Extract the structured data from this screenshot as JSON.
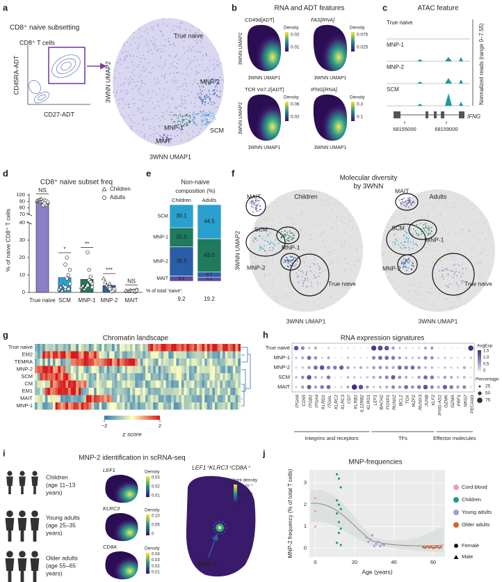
{
  "palette": [
    "#8a80c8",
    "#2b5ea7",
    "#1f7a5e",
    "#2aa0d0",
    "#5a4ea0"
  ],
  "a": {
    "label": "a",
    "title": "CD8⁺ naive subsetting",
    "gate_label": "CD8⁺ T cells",
    "x_label": "CD27-ADT",
    "y_label": "CD45RA-ADT",
    "umap_x": "3WNN UMAP1",
    "umap_y": "3WNN UMAP2",
    "clusters": [
      "True naive",
      "MNP-2",
      "MNP-1",
      "SCM",
      "MAIT"
    ]
  },
  "b": {
    "label": "b",
    "title": "RNA and ADT features",
    "umap_x": "3WNN UMAP1",
    "umap_y": "3WNN UMAP2",
    "legend_title": "Density",
    "features": [
      {
        "name": "CD49d[ADT]",
        "ticks": [
          "0.02",
          "0.01"
        ]
      },
      {
        "name": "FAS[RNA]",
        "ticks": [
          "0.075",
          "0.025"
        ]
      },
      {
        "name": "TCR Vα7.2[ADT]",
        "ticks": [
          "0.06",
          "0.02"
        ]
      },
      {
        "name": "IFNG[RNA]",
        "ticks": [
          "0.3",
          "0.1"
        ]
      }
    ]
  },
  "c": {
    "label": "c",
    "title": "ATAC feature",
    "tracks": [
      "True naive",
      "MNP-1",
      "MNP-2",
      "SCM"
    ],
    "y_label": "Normalized reads (range 0–7.55)",
    "gene": "IFNG",
    "x_ticks": [
      "68155000",
      "68159000"
    ]
  },
  "d": {
    "label": "d",
    "title": "CD8⁺ naive subset freq",
    "y_label": "% of naive CD8⁺ T cells",
    "legend": [
      "Children",
      "Adults"
    ],
    "categories": [
      "True naive",
      "SCM",
      "MNP-1",
      "MNP-2",
      "MAIT"
    ],
    "values": [
      88,
      8.5,
      7.5,
      4,
      0.8
    ],
    "significance": [
      "NS",
      "*",
      "**",
      "***",
      "NS"
    ],
    "points_children": [
      [
        91,
        92,
        93,
        94,
        88
      ],
      [
        2,
        3,
        1,
        4,
        2
      ],
      [
        3,
        4,
        2,
        3,
        5
      ],
      [
        8,
        6,
        4,
        3,
        5
      ],
      [
        1,
        0.5,
        0.8,
        1.2,
        0.6
      ]
    ],
    "points_adults": [
      [
        90,
        92,
        85,
        88,
        84,
        87,
        91,
        89
      ],
      [
        16,
        20,
        10,
        5,
        3,
        8,
        2,
        13
      ],
      [
        23,
        13,
        9,
        5,
        4,
        7,
        6,
        3
      ],
      [
        3,
        2,
        1,
        1,
        2,
        0.5,
        1,
        2
      ],
      [
        0.8,
        1,
        0.4,
        1.5,
        0.6,
        0.9,
        0.7,
        1.1
      ]
    ],
    "yticks": [
      0,
      10,
      20,
      30,
      40,
      70,
      80,
      90,
      100
    ]
  },
  "e": {
    "label": "e",
    "title_lines": [
      "Non-naive",
      "composition (%)"
    ],
    "columns": [
      "Children",
      "Adults"
    ],
    "segments": [
      {
        "name": "SCM",
        "values": [
          30.1,
          44.5
        ],
        "value_labels": [
          "30.1",
          "44.5"
        ]
      },
      {
        "name": "MNP-1",
        "values": [
          25,
          43.5
        ],
        "value_labels": [
          "25.0",
          "43.5"
        ]
      },
      {
        "name": "MNP-2",
        "values": [
          38,
          6.7
        ],
        "value_labels": [
          "38.0",
          "6.7"
        ]
      },
      {
        "name": "MAIT",
        "values": [
          6.9,
          5.3
        ],
        "value_labels": [
          "6.9",
          "5.3"
        ]
      }
    ],
    "footer_label": "% of total 'naive':",
    "totals": [
      9.2,
      19.2
    ]
  },
  "f": {
    "label": "f",
    "title_lines": [
      "Molecular diversity",
      "by 3WNN"
    ],
    "groups": [
      "Children",
      "Adults"
    ],
    "clusters": [
      "MAIT",
      "SCM",
      "MNP-1",
      "MNP-2",
      "True naive"
    ],
    "umap_x": "3WNN UMAP1",
    "umap_y": "3WNN UMAP2"
  },
  "g": {
    "label": "g",
    "title": "Chromatin landscape",
    "rows": [
      "True naive",
      "EM2",
      "TEMRA",
      "MNP-2",
      "SCM",
      "CM",
      "EM1",
      "MAIT",
      "MNP-1"
    ],
    "colorbar_ticks": [
      {
        "value": -2,
        "label": "−2"
      },
      2
    ],
    "colorbar_label": "z score"
  },
  "h": {
    "label": "h",
    "title": "RNA expression signatures",
    "rows": [
      "True naive",
      "MNP-1",
      "MNP-2",
      "SCM",
      "MAIT"
    ],
    "genes": [
      "ITGA6",
      "CD55",
      "ITGB1",
      "ITGA4",
      "KLRD1",
      "ITGAL",
      "KLRC2",
      "KLRC3",
      "CD7",
      "KLRB1",
      "IL12RB2",
      "KLRG1",
      "LEF1",
      "BACH2",
      "FOXP1",
      "RUNX2",
      "BCL2",
      "TOX",
      "IKZF2",
      "RUNX3",
      "JUNB",
      "KLF2",
      "IFNG-AS1",
      "GZMK",
      "GZMA",
      "PRF1",
      "NKG7",
      "PECAM1"
    ],
    "groups": [
      {
        "name": "Integrins and receptors",
        "span": [
          0,
          11
        ]
      },
      {
        "name": "TFs",
        "span": [
          12,
          21
        ]
      },
      {
        "name": "Effector molecules",
        "span": [
          22,
          27
        ]
      }
    ],
    "avg_exp": [
      [
        1.2,
        0.8,
        0.3,
        0.5,
        0,
        0.2,
        0,
        0,
        0.1,
        0,
        0,
        0,
        1.4,
        1.3,
        1.2,
        0.6,
        0.3,
        0.2,
        0.1,
        0.2,
        0.5,
        0.6,
        0,
        0,
        0,
        0,
        0,
        1.5
      ],
      [
        0.3,
        0.5,
        1,
        0.7,
        0.2,
        0.5,
        0,
        0,
        0.3,
        0.1,
        0.1,
        0.1,
        0.8,
        1,
        1,
        0.9,
        0.6,
        0.4,
        0.3,
        0.4,
        0.8,
        0.7,
        0.2,
        0.3,
        0.2,
        0.1,
        0.1,
        0.3
      ],
      [
        0.2,
        0.3,
        0.6,
        1,
        1.2,
        0.8,
        0.9,
        1.1,
        0.6,
        0.3,
        0.5,
        0.3,
        0.6,
        0.7,
        0.6,
        0.5,
        1,
        0.9,
        1,
        0.7,
        0.4,
        0.4,
        0.1,
        0.3,
        0.2,
        0.2,
        0.5,
        0.1
      ],
      [
        0.4,
        0.7,
        1.2,
        0.5,
        0.3,
        0.9,
        0,
        0.1,
        0.4,
        0.3,
        0.2,
        0.3,
        0.5,
        0.6,
        0.8,
        1.1,
        0.7,
        0.5,
        0.2,
        0.6,
        1,
        0.9,
        0.3,
        0.6,
        0.5,
        0.3,
        0.4,
        0.1
      ],
      [
        0.2,
        0.6,
        1.1,
        0.6,
        0.9,
        1,
        0.1,
        0.2,
        0.5,
        1.5,
        1.2,
        0.6,
        0.3,
        0.4,
        0.5,
        0.8,
        0.6,
        1,
        0.7,
        0.9,
        1.2,
        0.8,
        0.5,
        1.1,
        0.9,
        0.6,
        0.8,
        0.1
      ]
    ],
    "avg_legend_title": "AvgExp",
    "avg_ticks": [
      "1.5",
      "1.0",
      "0.5",
      "0"
    ],
    "pct_legend_title": "Percentage",
    "pct_ticks": [
      "25",
      "50",
      "75"
    ]
  },
  "i": {
    "label": "i",
    "title": "MNP-2 identification in scRNA-seq",
    "cohorts": [
      [
        "Children",
        "(age 11–13",
        "years)"
      ],
      [
        "Young adults",
        "(age 25–35",
        "years)"
      ],
      [
        "Older adults",
        "(age 55–65",
        "years)"
      ]
    ],
    "genes": [
      {
        "name": "LEF1",
        "ticks": [
          "0.03",
          "0.02",
          "0.01"
        ]
      },
      {
        "name": "KLRC3",
        "ticks": [
          "0.10",
          "0.05",
          "0"
        ]
      },
      {
        "name": "CD8A",
        "ticks": [
          "0.04",
          "0.03",
          "0.02",
          "0.01"
        ]
      }
    ],
    "legend_title": "Density",
    "joint_title": "LEF1⁺KLRC3⁺CD8A⁺",
    "joint_legend_title": "Joint density",
    "joint_ticks": [
      "2 × 10⁻⁵",
      "1 × 10⁻⁵",
      "0"
    ],
    "arrow_label": "MNP-2"
  },
  "j": {
    "label": "j",
    "title": "MNP-frequencies",
    "x_label": "Age (years)",
    "y_label": "MNP-2 frequency (% of total T cells)",
    "xlim": [
      -3,
      66
    ],
    "ylim": [
      -0.4,
      3.6
    ],
    "xticks": [
      0,
      20,
      40,
      60
    ],
    "yticks": [
      0,
      1,
      2,
      3
    ],
    "grid": true,
    "series": [
      {
        "name": "Cord blood",
        "color": "#f49ac1",
        "x": [
          0,
          0,
          0
        ],
        "values": [
          2.3,
          1.7,
          1
        ]
      },
      {
        "name": "Children",
        "color": "#1b9e77",
        "x": [
          11,
          12,
          13,
          11,
          12,
          13,
          11,
          12,
          13,
          12,
          11,
          13
        ],
        "values": [
          3.4,
          3.2,
          2.8,
          2.2,
          2,
          1.8,
          1.6,
          1.2,
          0.9,
          0.7,
          0.25,
          0.15
        ]
      },
      {
        "name": "Young adults",
        "color": "#a59cd3",
        "x": [
          26,
          27,
          28,
          29,
          30,
          31,
          32,
          33,
          34,
          35
        ],
        "values": [
          0.5,
          0.3,
          0.4,
          0.6,
          0.1,
          0.2,
          0.3,
          0.1,
          0.2,
          0.15
        ]
      },
      {
        "name": "Older adults",
        "color": "#d9622b",
        "x": [
          55,
          56,
          57,
          58,
          59,
          60,
          61,
          62,
          63,
          64
        ],
        "values": [
          0.05,
          0.02,
          0.08,
          0.03,
          0.06,
          0.01,
          0.04,
          0.07,
          0.02,
          0.05
        ]
      }
    ],
    "sex_legend": [
      "Female",
      "Male"
    ]
  }
}
